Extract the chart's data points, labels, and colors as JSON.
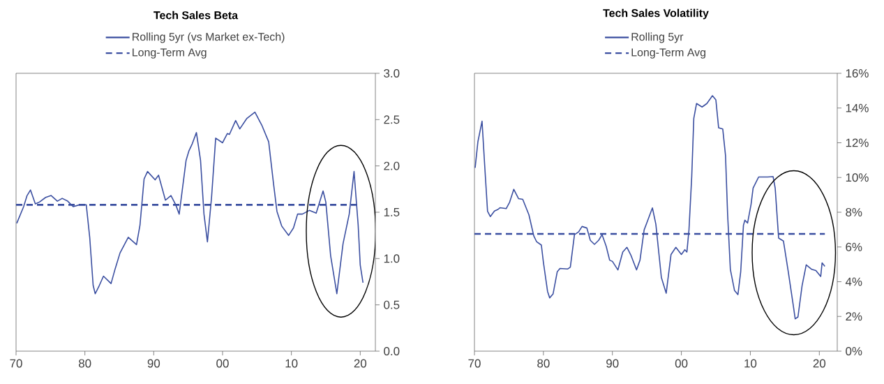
{
  "chart_data": [
    {
      "type": "line",
      "title": "Tech Sales Beta",
      "legend": "top",
      "marker": "none",
      "grid": false,
      "xlim": [
        1970,
        2022.2
      ],
      "ylim": [
        0,
        3
      ],
      "xticks": [
        {
          "value": 1970,
          "label": "70"
        },
        {
          "value": 1980,
          "label": "80"
        },
        {
          "value": 1990,
          "label": "90"
        },
        {
          "value": 2000,
          "label": "00"
        },
        {
          "value": 2010,
          "label": "10"
        },
        {
          "value": 2020,
          "label": "20"
        }
      ],
      "yticks": [
        {
          "value": 0,
          "label": "0.0"
        },
        {
          "value": 0.5,
          "label": "0.5"
        },
        {
          "value": 1,
          "label": "1.0"
        },
        {
          "value": 1.5,
          "label": "1.5"
        },
        {
          "value": 2,
          "label": "2.0"
        },
        {
          "value": 2.5,
          "label": "2.5"
        },
        {
          "value": 3,
          "label": "3.0"
        }
      ],
      "series": [
        {
          "name": "Rolling 5yr (vs Market ex-Tech)",
          "color": "#3a4ea0",
          "line_style": "solid",
          "x": [
            1970.1,
            1971.1,
            1971.6,
            1972.1,
            1972.8,
            1973.4,
            1974.3,
            1975.1,
            1976.0,
            1976.7,
            1977.5,
            1978.3,
            1979.2,
            1980.2,
            1980.7,
            1981.2,
            1981.5,
            1982.1,
            1982.7,
            1983.8,
            1984.4,
            1985.1,
            1986.3,
            1987.5,
            1988.0,
            1988.6,
            1989.1,
            1990.2,
            1990.7,
            1991.7,
            1992.5,
            1993.2,
            1993.7,
            1994.7,
            1995.1,
            1995.6,
            1996.2,
            1996.8,
            1997.3,
            1997.8,
            1998.4,
            1999.0,
            2000.0,
            2000.7,
            2001.0,
            2001.9,
            2002.5,
            2003.5,
            2004.7,
            2005.7,
            2006.7,
            2007.4,
            2007.9,
            2008.6,
            2009.6,
            2010.3,
            2010.9,
            2011.6,
            2012.6,
            2013.6,
            2014.6,
            2015.0,
            2015.7,
            2016.6,
            2017.5,
            2018.4,
            2019.1,
            2019.7,
            2020.0,
            2020.4
          ],
          "values": [
            1.38,
            1.56,
            1.68,
            1.74,
            1.59,
            1.61,
            1.66,
            1.68,
            1.62,
            1.65,
            1.62,
            1.56,
            1.58,
            1.58,
            1.23,
            0.71,
            0.62,
            0.71,
            0.81,
            0.73,
            0.89,
            1.06,
            1.23,
            1.15,
            1.36,
            1.86,
            1.94,
            1.85,
            1.9,
            1.63,
            1.68,
            1.58,
            1.48,
            2.06,
            2.16,
            2.24,
            2.36,
            2.06,
            1.48,
            1.18,
            1.66,
            2.3,
            2.25,
            2.35,
            2.34,
            2.49,
            2.4,
            2.51,
            2.58,
            2.44,
            2.26,
            1.81,
            1.51,
            1.35,
            1.25,
            1.33,
            1.48,
            1.48,
            1.52,
            1.49,
            1.73,
            1.61,
            1.03,
            0.62,
            1.16,
            1.48,
            1.94,
            1.36,
            0.93,
            0.74
          ]
        },
        {
          "name": "Long-Term Avg",
          "color": "#3a4ea0",
          "line_style": "dashed",
          "x": [
            1970,
            2019.7
          ],
          "values": [
            1.58,
            1.58
          ]
        }
      ]
    },
    {
      "type": "line",
      "title": "Tech Sales Volatility",
      "legend": "top",
      "marker": "none",
      "grid": false,
      "xlim": [
        1970,
        2022.6
      ],
      "ylim": [
        0,
        16
      ],
      "xticks": [
        {
          "value": 1970,
          "label": "70"
        },
        {
          "value": 1980,
          "label": "80"
        },
        {
          "value": 1990,
          "label": "90"
        },
        {
          "value": 2000,
          "label": "00"
        },
        {
          "value": 2010,
          "label": "10"
        },
        {
          "value": 2020,
          "label": "20"
        }
      ],
      "yticks": [
        {
          "value": 0,
          "label": "0%"
        },
        {
          "value": 2,
          "label": "2%"
        },
        {
          "value": 4,
          "label": "4%"
        },
        {
          "value": 6,
          "label": "6%"
        },
        {
          "value": 8,
          "label": "8%"
        },
        {
          "value": 10,
          "label": "10%"
        },
        {
          "value": 12,
          "label": "12%"
        },
        {
          "value": 14,
          "label": "14%"
        },
        {
          "value": 16,
          "label": "16%"
        }
      ],
      "series": [
        {
          "name": "Rolling 5yr",
          "color": "#3a4ea0",
          "line_style": "solid",
          "x": [
            1970.1,
            1970.5,
            1971.1,
            1971.5,
            1971.9,
            1972.3,
            1972.9,
            1973.4,
            1973.7,
            1974.6,
            1975.1,
            1975.7,
            1976.4,
            1977.0,
            1977.9,
            1978.6,
            1979.0,
            1979.7,
            1980.0,
            1980.6,
            1980.9,
            1981.4,
            1982.0,
            1982.4,
            1983.5,
            1983.9,
            1984.5,
            1985.1,
            1985.6,
            1986.3,
            1986.8,
            1987.4,
            1988.0,
            1988.5,
            1989.1,
            1989.6,
            1990.0,
            1990.8,
            1991.5,
            1992.1,
            1992.7,
            1993.5,
            1994.0,
            1994.6,
            1995.1,
            1995.8,
            1996.3,
            1997.1,
            1997.8,
            1998.5,
            1999.2,
            2000.0,
            2000.5,
            2000.8,
            2001.1,
            2001.5,
            2001.8,
            2002.2,
            2003.0,
            2003.7,
            2004.5,
            2005.0,
            2005.4,
            2006.0,
            2006.4,
            2006.7,
            2007.1,
            2007.7,
            2008.2,
            2008.6,
            2009.0,
            2009.2,
            2009.6,
            2010.1,
            2010.4,
            2011.2,
            2012.5,
            2013.3,
            2013.6,
            2014.1,
            2014.8,
            2015.5,
            2016.2,
            2016.5,
            2016.9,
            2017.5,
            2018.1,
            2018.9,
            2019.5,
            2020.2,
            2020.4,
            2020.8
          ],
          "values": [
            10.56,
            12.06,
            13.24,
            10.59,
            8.05,
            7.75,
            8.07,
            8.16,
            8.26,
            8.21,
            8.58,
            9.32,
            8.78,
            8.74,
            7.85,
            6.64,
            6.31,
            6.11,
            5.11,
            3.44,
            3.07,
            3.3,
            4.57,
            4.76,
            4.73,
            4.84,
            6.71,
            6.87,
            7.18,
            7.09,
            6.38,
            6.15,
            6.38,
            6.71,
            6.04,
            5.24,
            5.17,
            4.68,
            5.71,
            5.98,
            5.51,
            4.68,
            5.24,
            6.98,
            7.51,
            8.25,
            7.31,
            4.24,
            3.34,
            5.57,
            5.98,
            5.57,
            5.84,
            5.71,
            6.98,
            10.05,
            13.4,
            14.26,
            14.06,
            14.26,
            14.71,
            14.47,
            12.86,
            12.79,
            11.26,
            7.91,
            4.71,
            3.5,
            3.26,
            4.57,
            7.25,
            7.54,
            7.38,
            8.45,
            9.39,
            10.03,
            10.03,
            10.05,
            9.39,
            6.51,
            6.34,
            4.57,
            2.7,
            1.86,
            1.97,
            3.77,
            4.97,
            4.71,
            4.64,
            4.3,
            5.08,
            4.88
          ]
        },
        {
          "name": "Long-Term Avg",
          "color": "#3a4ea0",
          "line_style": "dashed",
          "x": [
            1970,
            2020.8
          ],
          "values": [
            6.75,
            6.75
          ]
        }
      ]
    }
  ]
}
